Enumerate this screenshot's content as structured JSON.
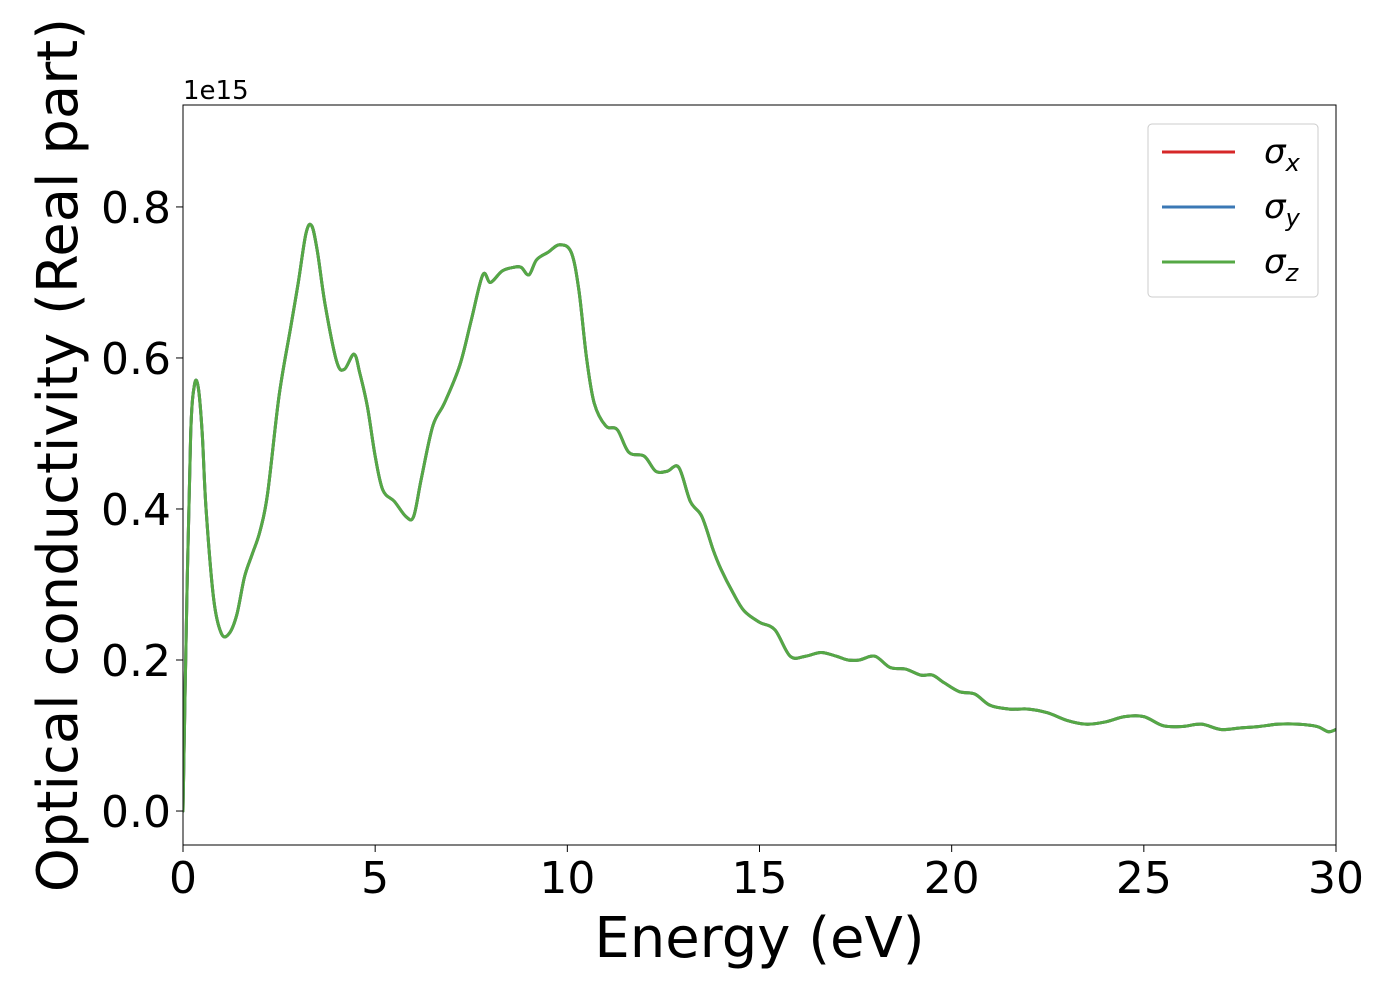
{
  "chart_data": {
    "type": "line",
    "xlabel": "Energy (eV)",
    "ylabel": "Optical conductivity (Real part)",
    "offset_text": "1e15",
    "xlim": [
      0,
      30
    ],
    "ylim": [
      -0.045,
      0.935
    ],
    "xticks": [
      0,
      5,
      10,
      15,
      20,
      25,
      30
    ],
    "xtick_labels": [
      "0",
      "5",
      "10",
      "15",
      "20",
      "25",
      "30"
    ],
    "yticks": [
      0.0,
      0.2,
      0.4,
      0.6,
      0.8
    ],
    "ytick_labels": [
      "0.0",
      "0.2",
      "0.4",
      "0.6",
      "0.8"
    ],
    "y_multiplier": 1000000000000000.0,
    "grid": false,
    "legend_position": "upper right",
    "series": [
      {
        "name": "σx",
        "legend_base": "σ",
        "legend_sub": "x",
        "color": "#d62728",
        "x": [
          0.0,
          0.1,
          0.2,
          0.3,
          0.4,
          0.5,
          0.6,
          0.8,
          1.0,
          1.2,
          1.4,
          1.6,
          1.8,
          2.0,
          2.2,
          2.5,
          2.8,
          3.0,
          3.2,
          3.35,
          3.5,
          3.7,
          4.0,
          4.2,
          4.45,
          4.6,
          4.8,
          5.0,
          5.2,
          5.5,
          5.8,
          6.0,
          6.2,
          6.5,
          6.8,
          7.2,
          7.5,
          7.8,
          8.0,
          8.3,
          8.6,
          8.8,
          9.0,
          9.2,
          9.5,
          9.8,
          10.1,
          10.3,
          10.5,
          10.7,
          11.0,
          11.3,
          11.6,
          12.0,
          12.3,
          12.6,
          12.9,
          13.2,
          13.5,
          13.8,
          14.0,
          14.3,
          14.6,
          15.0,
          15.4,
          15.8,
          16.2,
          16.6,
          17.0,
          17.3,
          17.6,
          18.0,
          18.4,
          18.8,
          19.2,
          19.5,
          19.8,
          20.2,
          20.6,
          21.0,
          21.5,
          22.0,
          22.5,
          23.0,
          23.5,
          24.0,
          24.5,
          25.0,
          25.5,
          26.0,
          26.5,
          27.0,
          27.5,
          28.0,
          28.5,
          29.0,
          29.5,
          29.8,
          30.0
        ],
        "y": [
          0.0,
          0.28,
          0.5,
          0.565,
          0.56,
          0.5,
          0.4,
          0.28,
          0.235,
          0.235,
          0.26,
          0.31,
          0.34,
          0.37,
          0.42,
          0.55,
          0.64,
          0.7,
          0.765,
          0.775,
          0.74,
          0.67,
          0.595,
          0.585,
          0.605,
          0.58,
          0.535,
          0.47,
          0.425,
          0.41,
          0.39,
          0.39,
          0.44,
          0.51,
          0.54,
          0.59,
          0.65,
          0.71,
          0.7,
          0.715,
          0.72,
          0.72,
          0.71,
          0.73,
          0.74,
          0.75,
          0.74,
          0.69,
          0.6,
          0.54,
          0.51,
          0.505,
          0.475,
          0.47,
          0.45,
          0.45,
          0.455,
          0.41,
          0.39,
          0.345,
          0.32,
          0.29,
          0.265,
          0.25,
          0.24,
          0.205,
          0.205,
          0.21,
          0.205,
          0.2,
          0.2,
          0.205,
          0.19,
          0.188,
          0.18,
          0.18,
          0.17,
          0.158,
          0.155,
          0.14,
          0.135,
          0.135,
          0.13,
          0.12,
          0.115,
          0.118,
          0.125,
          0.125,
          0.113,
          0.112,
          0.115,
          0.108,
          0.11,
          0.112,
          0.115,
          0.115,
          0.112,
          0.105,
          0.108
        ]
      },
      {
        "name": "σy",
        "legend_base": "σ",
        "legend_sub": "y",
        "color": "#3b78b5",
        "same_as": 0
      },
      {
        "name": "σz",
        "legend_base": "σ",
        "legend_sub": "z",
        "color": "#55a845",
        "same_as": 0
      }
    ]
  }
}
